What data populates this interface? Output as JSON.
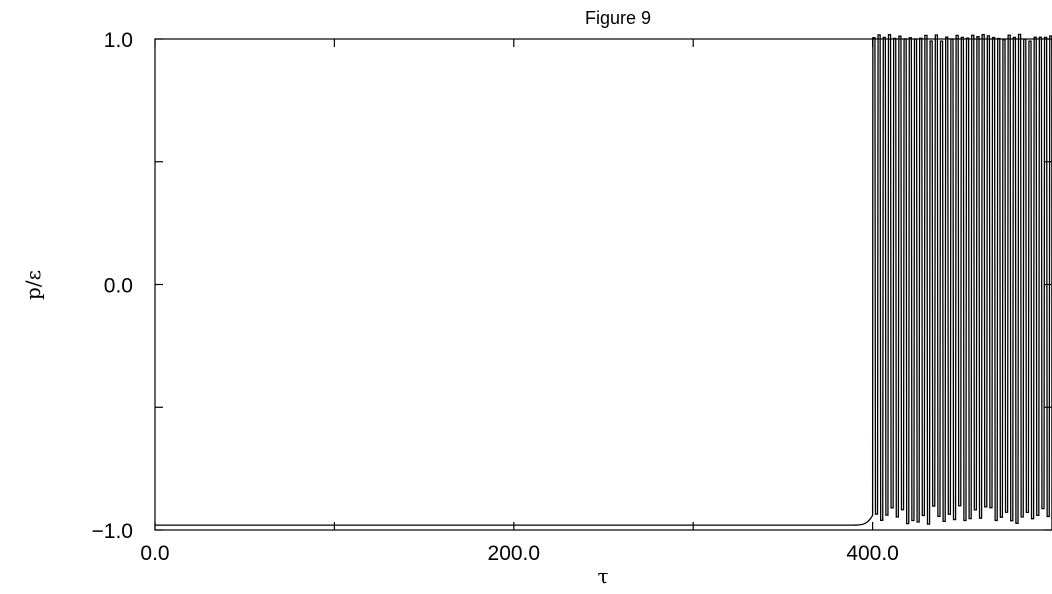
{
  "chart_data": {
    "type": "line",
    "title": "Figure 9",
    "xlabel": "τ",
    "ylabel": "p/ε",
    "xlim": [
      0,
      500
    ],
    "ylim": [
      -1.0,
      1.0
    ],
    "x_ticks": [
      0,
      100,
      200,
      300,
      400,
      500
    ],
    "x_tick_labels": [
      "0.0",
      "200.0",
      "400.0"
    ],
    "x_tick_label_values": [
      0,
      200,
      400
    ],
    "y_ticks": [
      -1.0,
      -0.5,
      0.0,
      0.5,
      1.0
    ],
    "y_tick_labels": [
      "−1.0",
      "0.0",
      "1.0"
    ],
    "y_tick_label_values": [
      -1.0,
      0.0,
      1.0
    ],
    "grid": false,
    "line_color": "#000000",
    "series": [
      {
        "description_of_shape": "flat near -0.98 until about tau=390, sharp rise near tau=398-400, then rapid oscillation between about -0.98 and 1.02 with period about 2.9",
        "baseline": -0.98,
        "transition_start": 388,
        "transition_end": 400,
        "oscillation_start": 400,
        "oscillation_end": 500,
        "oscillation_period": 2.9,
        "oscillation_max": 1.02,
        "oscillation_min": -0.98
      }
    ]
  }
}
